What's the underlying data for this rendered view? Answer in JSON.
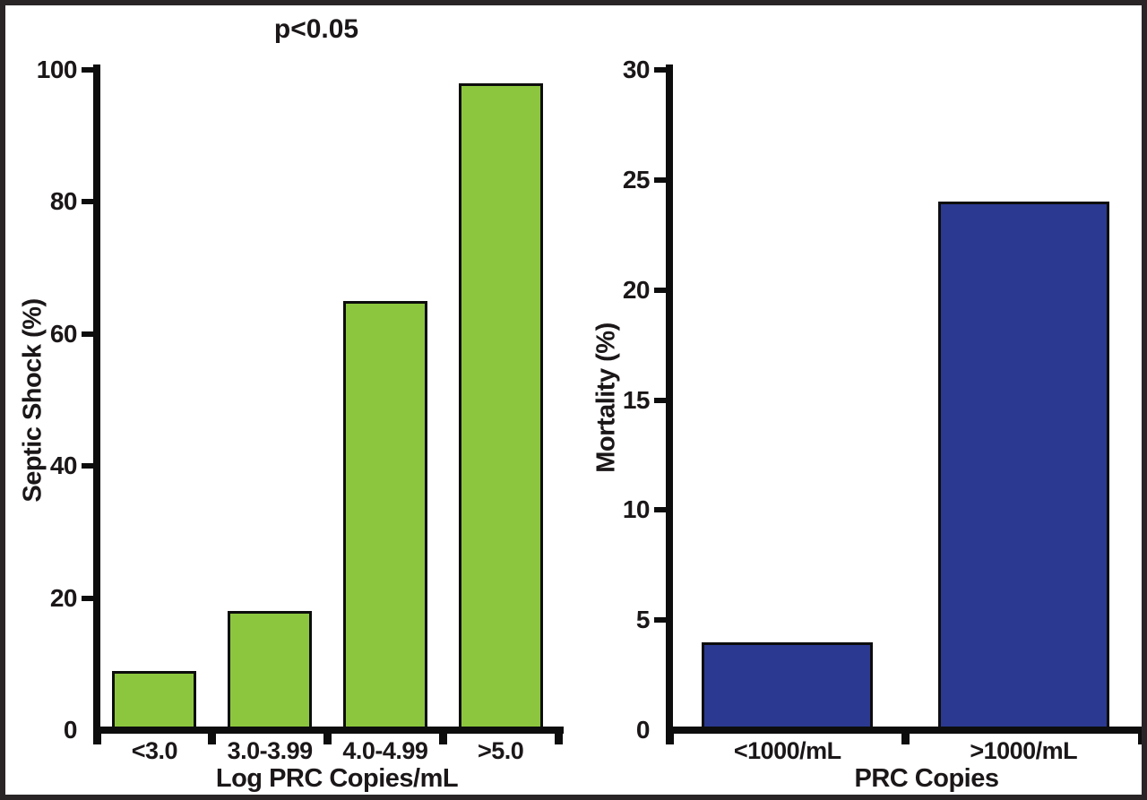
{
  "frame": {
    "border_color": "#292425",
    "background_color": "#ffffff",
    "text_color": "#1b1718",
    "axis_color": "#0d0d0d"
  },
  "chart_data": [
    {
      "type": "bar",
      "annotation": "p<0.05",
      "categories": [
        "<3.0",
        "3.0-3.99",
        "4.0-4.99",
        ">5.0"
      ],
      "values": [
        9,
        18,
        65,
        98
      ],
      "xlabel": "Log PRC Copies/mL",
      "ylabel": "Septic Shock (%)",
      "ylim": [
        0,
        100
      ],
      "yticks": [
        0,
        20,
        40,
        60,
        80,
        100
      ],
      "bar_color": "#8cc63e",
      "bar_border_color": "#0d0d0d",
      "grid": false,
      "legend": "none"
    },
    {
      "type": "bar",
      "categories": [
        "<1000/mL",
        ">1000/mL"
      ],
      "values": [
        4,
        24
      ],
      "xlabel": "PRC Copies",
      "ylabel": "Mortality (%)",
      "ylim": [
        0,
        30
      ],
      "yticks": [
        0,
        5,
        10,
        15,
        20,
        25,
        30
      ],
      "bar_color": "#2b3990",
      "bar_border_color": "#0d0d0d",
      "grid": false,
      "legend": "none"
    }
  ]
}
